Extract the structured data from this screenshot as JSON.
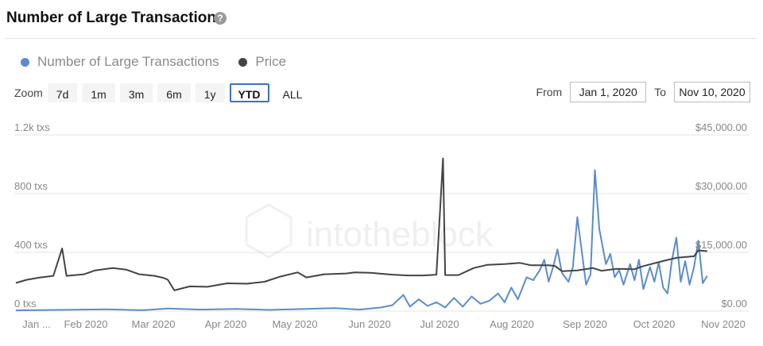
{
  "header": {
    "title": "Number of Large Transactions",
    "help_icon": "question-circle-icon"
  },
  "legend": [
    {
      "label": "Number of Large Transactions",
      "color": "#5b8ccc"
    },
    {
      "label": "Price",
      "color": "#434348"
    }
  ],
  "zoom": {
    "label": "Zoom",
    "buttons": [
      "7d",
      "1m",
      "3m",
      "6m",
      "1y",
      "YTD",
      "ALL"
    ],
    "active": "YTD"
  },
  "range": {
    "from_label": "From",
    "from_value": "Jan 1, 2020",
    "to_label": "To",
    "to_value": "Nov 10, 2020"
  },
  "watermark": "intotheblock",
  "chart_data": {
    "type": "line",
    "x_range": [
      "2020-01-01",
      "2020-11-10"
    ],
    "x_ticks": [
      "Jan ...",
      "Feb 2020",
      "Mar 2020",
      "Apr 2020",
      "May 2020",
      "Jun 2020",
      "Jul 2020",
      "Aug 2020",
      "Sep 2020",
      "Oct 2020",
      "Nov 2020"
    ],
    "y_left": {
      "ticks": [
        "0 txs",
        "400 txs",
        "800 txs",
        "1.2k txs"
      ],
      "range": [
        0,
        1200
      ]
    },
    "y_right": {
      "ticks": [
        "$0.00",
        "$15,000.00",
        "$30,000.00",
        "$45,000.00"
      ],
      "range": [
        0,
        45000
      ]
    },
    "grid": true,
    "series": [
      {
        "name": "Number of Large Transactions",
        "axis": "left",
        "color": "#5b8ccc",
        "points": [
          [
            "2020-01-01",
            5
          ],
          [
            "2020-01-20",
            8
          ],
          [
            "2020-02-10",
            12
          ],
          [
            "2020-02-28",
            6
          ],
          [
            "2020-03-10",
            18
          ],
          [
            "2020-03-25",
            10
          ],
          [
            "2020-04-10",
            15
          ],
          [
            "2020-04-25",
            8
          ],
          [
            "2020-05-10",
            14
          ],
          [
            "2020-05-25",
            20
          ],
          [
            "2020-06-05",
            10
          ],
          [
            "2020-06-15",
            25
          ],
          [
            "2020-06-20",
            40
          ],
          [
            "2020-06-25",
            110
          ],
          [
            "2020-06-28",
            30
          ],
          [
            "2020-07-02",
            80
          ],
          [
            "2020-07-06",
            35
          ],
          [
            "2020-07-10",
            60
          ],
          [
            "2020-07-14",
            25
          ],
          [
            "2020-07-18",
            90
          ],
          [
            "2020-07-22",
            30
          ],
          [
            "2020-07-26",
            100
          ],
          [
            "2020-07-30",
            50
          ],
          [
            "2020-08-03",
            70
          ],
          [
            "2020-08-07",
            120
          ],
          [
            "2020-08-10",
            60
          ],
          [
            "2020-08-13",
            160
          ],
          [
            "2020-08-16",
            80
          ],
          [
            "2020-08-20",
            230
          ],
          [
            "2020-08-23",
            210
          ],
          [
            "2020-08-26",
            280
          ],
          [
            "2020-08-28",
            350
          ],
          [
            "2020-08-30",
            200
          ],
          [
            "2020-09-01",
            300
          ],
          [
            "2020-09-03",
            420
          ],
          [
            "2020-09-05",
            260
          ],
          [
            "2020-09-08",
            200
          ],
          [
            "2020-09-10",
            300
          ],
          [
            "2020-09-12",
            640
          ],
          [
            "2020-09-14",
            410
          ],
          [
            "2020-09-16",
            180
          ],
          [
            "2020-09-18",
            250
          ],
          [
            "2020-09-20",
            960
          ],
          [
            "2020-09-22",
            560
          ],
          [
            "2020-09-25",
            320
          ],
          [
            "2020-09-27",
            390
          ],
          [
            "2020-09-29",
            230
          ],
          [
            "2020-10-01",
            280
          ],
          [
            "2020-10-03",
            180
          ],
          [
            "2020-10-06",
            320
          ],
          [
            "2020-10-08",
            210
          ],
          [
            "2020-10-10",
            350
          ],
          [
            "2020-10-12",
            150
          ],
          [
            "2020-10-15",
            300
          ],
          [
            "2020-10-17",
            200
          ],
          [
            "2020-10-19",
            330
          ],
          [
            "2020-10-21",
            160
          ],
          [
            "2020-10-23",
            120
          ],
          [
            "2020-10-25",
            350
          ],
          [
            "2020-10-27",
            500
          ],
          [
            "2020-10-29",
            200
          ],
          [
            "2020-10-31",
            340
          ],
          [
            "2020-11-02",
            180
          ],
          [
            "2020-11-04",
            300
          ],
          [
            "2020-11-06",
            480
          ],
          [
            "2020-11-08",
            190
          ],
          [
            "2020-11-10",
            240
          ]
        ]
      },
      {
        "name": "Price",
        "axis": "right",
        "color": "#434348",
        "points": [
          [
            "2020-01-01",
            7200
          ],
          [
            "2020-01-06",
            8000
          ],
          [
            "2020-01-12",
            8600
          ],
          [
            "2020-01-18",
            9000
          ],
          [
            "2020-01-22",
            16000
          ],
          [
            "2020-01-24",
            9000
          ],
          [
            "2020-02-01",
            9400
          ],
          [
            "2020-02-06",
            10400
          ],
          [
            "2020-02-14",
            11000
          ],
          [
            "2020-02-20",
            10600
          ],
          [
            "2020-02-26",
            9400
          ],
          [
            "2020-03-04",
            9000
          ],
          [
            "2020-03-08",
            8500
          ],
          [
            "2020-03-10",
            8000
          ],
          [
            "2020-03-13",
            5300
          ],
          [
            "2020-03-20",
            6300
          ],
          [
            "2020-03-28",
            6200
          ],
          [
            "2020-04-06",
            7100
          ],
          [
            "2020-04-15",
            7000
          ],
          [
            "2020-04-23",
            7500
          ],
          [
            "2020-04-30",
            8800
          ],
          [
            "2020-05-08",
            9900
          ],
          [
            "2020-05-12",
            8600
          ],
          [
            "2020-05-20",
            9400
          ],
          [
            "2020-05-30",
            9600
          ],
          [
            "2020-06-03",
            9900
          ],
          [
            "2020-06-10",
            9800
          ],
          [
            "2020-06-20",
            9300
          ],
          [
            "2020-06-27",
            9100
          ],
          [
            "2020-07-04",
            9100
          ],
          [
            "2020-07-10",
            9300
          ],
          [
            "2020-07-13",
            39000
          ],
          [
            "2020-07-14",
            9200
          ],
          [
            "2020-07-20",
            9200
          ],
          [
            "2020-07-27",
            11000
          ],
          [
            "2020-08-02",
            11800
          ],
          [
            "2020-08-10",
            12000
          ],
          [
            "2020-08-17",
            12300
          ],
          [
            "2020-08-22",
            11700
          ],
          [
            "2020-08-30",
            11700
          ],
          [
            "2020-09-02",
            11500
          ],
          [
            "2020-09-05",
            10200
          ],
          [
            "2020-09-12",
            10400
          ],
          [
            "2020-09-19",
            11000
          ],
          [
            "2020-09-23",
            10300
          ],
          [
            "2020-09-30",
            10800
          ],
          [
            "2020-10-08",
            10700
          ],
          [
            "2020-10-12",
            11500
          ],
          [
            "2020-10-21",
            12800
          ],
          [
            "2020-10-27",
            13600
          ],
          [
            "2020-10-31",
            13800
          ],
          [
            "2020-11-04",
            14000
          ],
          [
            "2020-11-06",
            15500
          ],
          [
            "2020-11-10",
            15300
          ]
        ]
      }
    ]
  }
}
